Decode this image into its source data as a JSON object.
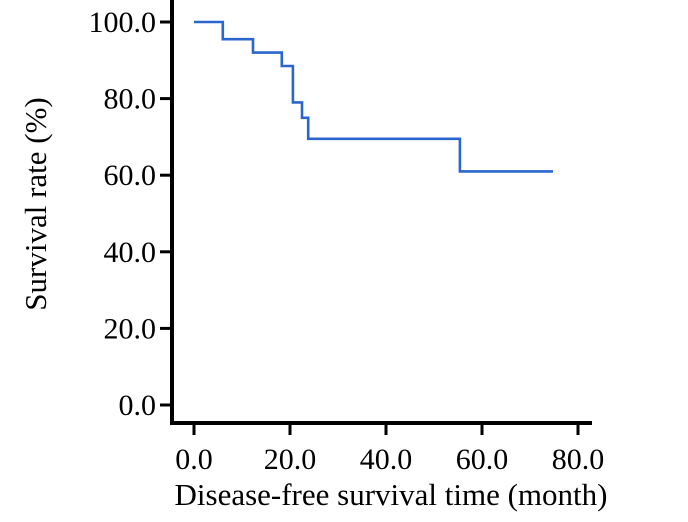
{
  "chart_data": {
    "type": "line",
    "subtype": "kaplan-meier-step",
    "title": "",
    "xlabel": "Disease-free survival time (month)",
    "ylabel": "Survival rate (%)",
    "x_axis": {
      "tick_values": [
        0,
        20,
        40,
        60,
        80
      ],
      "tick_labels": [
        "0.0",
        "20.0",
        "40.0",
        "60.0",
        "80.0"
      ],
      "range": [
        0,
        83
      ]
    },
    "y_axis": {
      "tick_values": [
        0,
        20,
        40,
        60,
        80,
        100
      ],
      "tick_labels": [
        "0.0",
        "20.0",
        "40.0",
        "60.0",
        "80.0",
        "100.0"
      ],
      "range": [
        0,
        100
      ]
    },
    "grid": false,
    "legend_position": "none",
    "series": [
      {
        "name": "Disease-free survival",
        "color": "#2a66cc",
        "steps": [
          {
            "time": 0,
            "survival": 100
          },
          {
            "time": 6.0,
            "survival": 95.5
          },
          {
            "time": 12.3,
            "survival": 92.0
          },
          {
            "time": 18.3,
            "survival": 88.5
          },
          {
            "time": 20.6,
            "survival": 79.0
          },
          {
            "time": 22.5,
            "survival": 75.0
          },
          {
            "time": 23.8,
            "survival": 69.5
          },
          {
            "time": 55.4,
            "survival": 61.0
          }
        ],
        "end_time": 74.8
      }
    ]
  },
  "colors": {
    "background": "#ffffff",
    "axis": "#000000",
    "curve": "#2a66cc"
  }
}
